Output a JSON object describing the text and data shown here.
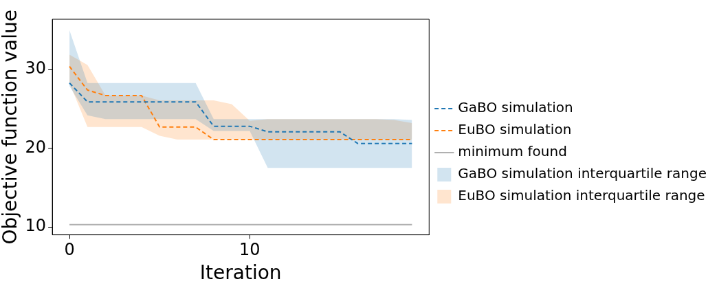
{
  "chart_data": {
    "type": "line",
    "xlabel": "Iteration",
    "ylabel": "Objective function value",
    "x": [
      0,
      1,
      2,
      3,
      4,
      5,
      6,
      7,
      8,
      9,
      10,
      11,
      12,
      13,
      14,
      15,
      16,
      17,
      18,
      19
    ],
    "series": [
      {
        "name": "GaBO simulation",
        "color": "#1f77b4",
        "line_style": "dashed",
        "values": [
          28.3,
          25.9,
          25.9,
          25.9,
          25.9,
          25.9,
          25.9,
          25.9,
          22.8,
          22.8,
          22.8,
          22.1,
          22.1,
          22.1,
          22.1,
          22.1,
          20.6,
          20.6,
          20.6,
          20.6
        ]
      },
      {
        "name": "EuBO simulation",
        "color": "#ff7f0e",
        "line_style": "dashed",
        "values": [
          30.4,
          27.4,
          26.7,
          26.7,
          26.7,
          22.7,
          22.7,
          22.7,
          21.1,
          21.1,
          21.1,
          21.1,
          21.1,
          21.1,
          21.1,
          21.1,
          21.1,
          21.1,
          21.1,
          21.1
        ]
      },
      {
        "name": "minimum found",
        "color": "#b0b0b0",
        "line_style": "solid",
        "values": [
          10.3,
          10.3,
          10.3,
          10.3,
          10.3,
          10.3,
          10.3,
          10.3,
          10.3,
          10.3,
          10.3,
          10.3,
          10.3,
          10.3,
          10.3,
          10.3,
          10.3,
          10.3,
          10.3,
          10.3
        ]
      },
      {
        "name": "GaBO simulation interquartile range",
        "type": "area",
        "color": "#1f77b4",
        "values": [
          null,
          null,
          null,
          null,
          null,
          null,
          null,
          null,
          null,
          null,
          null,
          null,
          null,
          null,
          null,
          null,
          null,
          null,
          null,
          null
        ],
        "upper": [
          35.0,
          28.3,
          28.3,
          28.3,
          28.3,
          28.3,
          28.3,
          28.3,
          23.7,
          23.7,
          23.7,
          23.7,
          23.7,
          23.7,
          23.7,
          23.7,
          23.7,
          23.7,
          23.7,
          23.6
        ],
        "lower": [
          27.9,
          24.2,
          23.7,
          23.7,
          23.7,
          23.7,
          23.7,
          23.7,
          22.2,
          22.2,
          22.2,
          17.5,
          17.5,
          17.5,
          17.5,
          17.5,
          17.5,
          17.5,
          17.5,
          17.5
        ]
      },
      {
        "name": "EuBO simulation interquartile range",
        "type": "area",
        "color": "#ff7f0e",
        "values": [
          null,
          null,
          null,
          null,
          null,
          null,
          null,
          null,
          null,
          null,
          null,
          null,
          null,
          null,
          null,
          null,
          null,
          null,
          null,
          null
        ],
        "upper": [
          31.9,
          30.6,
          26.7,
          26.7,
          26.7,
          26.1,
          26.1,
          26.1,
          26.1,
          25.6,
          23.5,
          23.7,
          23.7,
          23.7,
          23.7,
          23.7,
          23.7,
          23.7,
          23.6,
          23.2
        ],
        "lower": [
          28.3,
          22.7,
          22.7,
          22.7,
          22.7,
          21.6,
          21.1,
          21.1,
          21.1,
          21.1,
          21.1,
          21.1,
          21.1,
          21.1,
          21.1,
          21.1,
          21.1,
          21.1,
          21.1,
          21.1
        ]
      }
    ],
    "xlim": [
      -0.95,
      19.95
    ],
    "xticks": [
      0,
      10
    ],
    "ylim": [
      9.0,
      36.4
    ],
    "yticks": [
      10,
      20,
      30
    ],
    "grid": false,
    "legend": "right",
    "marker": "none"
  }
}
